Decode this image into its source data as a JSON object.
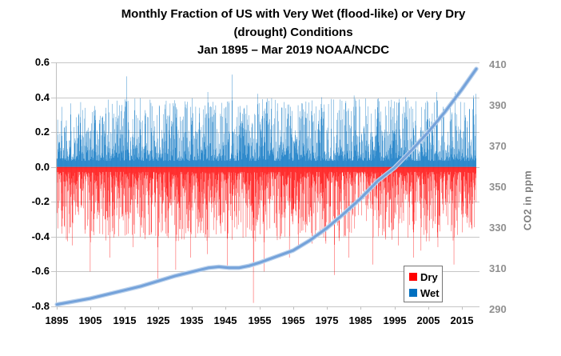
{
  "title": {
    "line1": "Monthly Fraction of US with Very Wet (flood-like) or Very Dry",
    "line2": "(drought) Conditions",
    "line3": "Jan 1895 – Mar 2019 NOAA/NCDC"
  },
  "legend": {
    "items": [
      {
        "label": "Dry",
        "color": "#FF0000"
      },
      {
        "label": "Wet",
        "color": "#0070C0"
      }
    ]
  },
  "chart_data": {
    "type": "combo",
    "subtype": "monthly bars (wet up, dry down) + CO2 line on secondary axis",
    "x_axis": {
      "range": [
        1895,
        2019.25
      ],
      "tick_labels": [
        "1895",
        "1905",
        "1915",
        "1925",
        "1935",
        "1945",
        "1955",
        "1965",
        "1975",
        "1985",
        "1995",
        "2005",
        "2015"
      ],
      "tick_years": [
        1895,
        1905,
        1915,
        1925,
        1935,
        1945,
        1955,
        1965,
        1975,
        1985,
        1995,
        2005,
        2015
      ]
    },
    "y_left_axis": {
      "min": -0.8,
      "max": 0.6,
      "tick_labels": [
        "0.6",
        "0.4",
        "0.2",
        "0.0",
        "-0.2",
        "-0.4",
        "-0.6",
        "-0.8"
      ],
      "grid": true,
      "gridline_color": "#C6C6C6",
      "axis_line_color": "#BFBFBF"
    },
    "y_right_axis": {
      "min": 290,
      "max": 410,
      "tick_labels": [
        "410",
        "390",
        "370",
        "350",
        "330",
        "310",
        "290"
      ],
      "title": "CO2 in ppm"
    },
    "months_total": 1491,
    "series": [
      {
        "name": "Wet",
        "type": "bar",
        "direction": "up",
        "color": "#0070C0",
        "note": "monthly fraction, estimated noise envelope read from pixels",
        "gen": {
          "seed": 1337,
          "min": 0.035,
          "amp": 0.36,
          "exp": 2.0
        },
        "spikes": [
          [
            1906.2,
            0.35
          ],
          [
            1915.6,
            0.52
          ],
          [
            1927.3,
            0.38
          ],
          [
            1939.7,
            0.43
          ],
          [
            1946.8,
            0.53
          ],
          [
            1954.5,
            0.42
          ],
          [
            1957.8,
            0.38
          ],
          [
            1969.7,
            0.37
          ],
          [
            1973.3,
            0.4
          ],
          [
            1979.4,
            0.38
          ],
          [
            1983.0,
            0.41
          ],
          [
            1990.0,
            0.39
          ],
          [
            1995.6,
            0.37
          ],
          [
            1998.3,
            0.4
          ],
          [
            2004.6,
            0.38
          ],
          [
            2007.5,
            0.43
          ],
          [
            2012.9,
            0.43
          ],
          [
            2015.7,
            0.37
          ],
          [
            2018.4,
            0.41
          ],
          [
            2019.1,
            0.42
          ]
        ]
      },
      {
        "name": "Dry",
        "type": "bar",
        "direction": "down",
        "color": "#FF0000",
        "note": "monthly fraction (negative), estimated noise envelope read from pixels",
        "gen": {
          "seed": 20190,
          "min": 0.028,
          "amp": 0.4,
          "exp": 2.1
        },
        "spikes": [
          [
            1899.6,
            -0.45
          ],
          [
            1904.8,
            -0.6
          ],
          [
            1910.7,
            -0.52
          ],
          [
            1917.6,
            -0.46
          ],
          [
            1924.8,
            -0.64
          ],
          [
            1930.2,
            -0.59
          ],
          [
            1934.5,
            -0.52
          ],
          [
            1939.5,
            -0.5
          ],
          [
            1945.4,
            -0.57
          ],
          [
            1953.2,
            -0.78
          ],
          [
            1956.3,
            -0.6
          ],
          [
            1963.8,
            -0.52
          ],
          [
            1966.5,
            -0.45
          ],
          [
            1970.6,
            -0.44
          ],
          [
            1974.7,
            -0.44
          ],
          [
            1977.2,
            -0.62
          ],
          [
            1981.5,
            -0.52
          ],
          [
            1988.6,
            -0.56
          ],
          [
            1996.2,
            -0.45
          ],
          [
            2000.6,
            -0.52
          ],
          [
            2002.8,
            -0.48
          ],
          [
            2007.8,
            -0.46
          ],
          [
            2012.6,
            -0.56
          ]
        ]
      },
      {
        "name": "CO2 in ppm",
        "type": "line",
        "axis": "right",
        "color": "#74A2DA",
        "halo_color": "#BAD1EC",
        "points": [
          [
            1895,
            292.5
          ],
          [
            1900,
            294
          ],
          [
            1905,
            295.5
          ],
          [
            1910,
            297.5
          ],
          [
            1915,
            299.5
          ],
          [
            1920,
            301.5
          ],
          [
            1925,
            304
          ],
          [
            1930,
            306.5
          ],
          [
            1935,
            308.5
          ],
          [
            1940,
            310.5
          ],
          [
            1943,
            311
          ],
          [
            1946,
            310.5
          ],
          [
            1949,
            310.5
          ],
          [
            1952,
            311.5
          ],
          [
            1955,
            313
          ],
          [
            1960,
            316
          ],
          [
            1965,
            319
          ],
          [
            1970,
            324
          ],
          [
            1975,
            330
          ],
          [
            1980,
            337
          ],
          [
            1985,
            344.5
          ],
          [
            1990,
            353
          ],
          [
            1995,
            359.5
          ],
          [
            2000,
            368
          ],
          [
            2005,
            377
          ],
          [
            2010,
            387
          ],
          [
            2015,
            398
          ],
          [
            2019.25,
            408
          ]
        ]
      }
    ],
    "background": "#FFFFFF",
    "legend_position": "inside bottom-right"
  }
}
